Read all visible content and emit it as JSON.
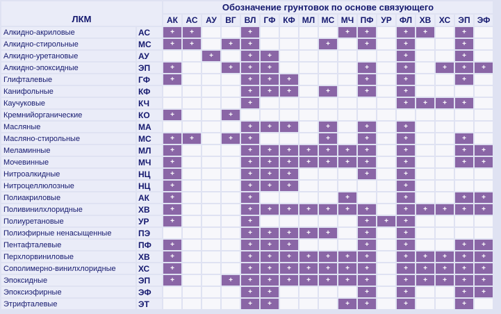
{
  "header": {
    "lkm_label": "ЛКМ",
    "title": "Обозначение грунтовок по основе связующего"
  },
  "mark_symbol": "+",
  "colors": {
    "background": "#dfe2f2",
    "cell": "#f7f7fb",
    "marked_cell": "#8a66a6",
    "text": "#14186e"
  },
  "columns": [
    "АК",
    "АС",
    "АУ",
    "ВГ",
    "ВЛ",
    "ГФ",
    "КФ",
    "МЛ",
    "МС",
    "МЧ",
    "ПФ",
    "УР",
    "ФЛ",
    "ХВ",
    "ХС",
    "ЭП",
    "ЭФ"
  ],
  "rows": [
    {
      "name": "Алкидно-акриловые",
      "code": "АС",
      "marks": [
        1,
        1,
        0,
        0,
        1,
        0,
        0,
        0,
        0,
        1,
        1,
        0,
        1,
        1,
        0,
        1,
        0
      ]
    },
    {
      "name": "Алкидно-стирольные",
      "code": "МС",
      "marks": [
        1,
        1,
        0,
        1,
        1,
        0,
        0,
        0,
        1,
        0,
        1,
        0,
        1,
        0,
        0,
        1,
        0
      ]
    },
    {
      "name": "Алкидно-уретановые",
      "code": "АУ",
      "marks": [
        0,
        0,
        1,
        0,
        1,
        1,
        0,
        0,
        0,
        0,
        0,
        0,
        1,
        0,
        0,
        1,
        0
      ]
    },
    {
      "name": "Алкидно-эпоксидные",
      "code": "ЭП",
      "marks": [
        1,
        0,
        0,
        1,
        1,
        1,
        0,
        0,
        0,
        0,
        1,
        0,
        1,
        0,
        1,
        1,
        1
      ]
    },
    {
      "name": "Глифталевые",
      "code": "ГФ",
      "marks": [
        1,
        0,
        0,
        0,
        1,
        1,
        1,
        0,
        0,
        0,
        1,
        0,
        1,
        0,
        0,
        1,
        0
      ]
    },
    {
      "name": "Канифольные",
      "code": "КФ",
      "marks": [
        0,
        0,
        0,
        0,
        1,
        1,
        1,
        0,
        1,
        0,
        1,
        0,
        1,
        0,
        0,
        0,
        0
      ]
    },
    {
      "name": "Каучуковые",
      "code": "КЧ",
      "marks": [
        0,
        0,
        0,
        0,
        1,
        0,
        0,
        0,
        0,
        0,
        0,
        0,
        1,
        1,
        1,
        1,
        0
      ]
    },
    {
      "name": "Кремнийорганические",
      "code": "КО",
      "marks": [
        1,
        0,
        0,
        1,
        0,
        0,
        0,
        0,
        0,
        0,
        0,
        0,
        0,
        0,
        0,
        0,
        0
      ]
    },
    {
      "name": "Масляные",
      "code": "МА",
      "marks": [
        0,
        0,
        0,
        0,
        1,
        1,
        1,
        0,
        1,
        0,
        1,
        0,
        1,
        0,
        0,
        0,
        0
      ]
    },
    {
      "name": "Масляно-стирольные",
      "code": "МС",
      "marks": [
        1,
        1,
        0,
        1,
        1,
        0,
        0,
        0,
        1,
        0,
        1,
        0,
        1,
        0,
        0,
        1,
        0
      ]
    },
    {
      "name": "Меламинные",
      "code": "МЛ",
      "marks": [
        1,
        0,
        0,
        0,
        1,
        1,
        1,
        1,
        1,
        1,
        1,
        0,
        1,
        0,
        0,
        1,
        1
      ]
    },
    {
      "name": "Мочевинные",
      "code": "МЧ",
      "marks": [
        1,
        0,
        0,
        0,
        1,
        1,
        1,
        1,
        1,
        1,
        1,
        0,
        1,
        0,
        0,
        1,
        1
      ]
    },
    {
      "name": "Нитроалкидные",
      "code": "НЦ",
      "marks": [
        1,
        0,
        0,
        0,
        1,
        1,
        1,
        0,
        0,
        0,
        1,
        0,
        1,
        0,
        0,
        0,
        0
      ]
    },
    {
      "name": "Нитроцеллюлозные",
      "code": "НЦ",
      "marks": [
        1,
        0,
        0,
        0,
        1,
        1,
        1,
        0,
        0,
        0,
        0,
        0,
        1,
        0,
        0,
        0,
        0
      ]
    },
    {
      "name": "Полиакриловые",
      "code": "АК",
      "marks": [
        1,
        0,
        0,
        0,
        1,
        0,
        0,
        0,
        0,
        1,
        0,
        0,
        1,
        0,
        0,
        1,
        1
      ]
    },
    {
      "name": "Поливинилхлоридные",
      "code": "ХВ",
      "marks": [
        1,
        0,
        0,
        0,
        1,
        1,
        1,
        1,
        1,
        1,
        1,
        0,
        1,
        1,
        1,
        1,
        1
      ]
    },
    {
      "name": "Полиуретановые",
      "code": "УР",
      "marks": [
        1,
        0,
        0,
        0,
        1,
        0,
        0,
        0,
        0,
        0,
        1,
        1,
        1,
        0,
        0,
        0,
        0
      ]
    },
    {
      "name": "Полиэфирные ненасыщенные",
      "code": "ПЭ",
      "marks": [
        0,
        0,
        0,
        0,
        1,
        1,
        1,
        1,
        1,
        0,
        1,
        0,
        1,
        0,
        0,
        0,
        0
      ]
    },
    {
      "name": "Пентафталевые",
      "code": "ПФ",
      "marks": [
        1,
        0,
        0,
        0,
        1,
        1,
        1,
        0,
        0,
        0,
        1,
        0,
        1,
        0,
        0,
        1,
        1
      ]
    },
    {
      "name": "Перхлорвиниловые",
      "code": "ХВ",
      "marks": [
        1,
        0,
        0,
        0,
        1,
        1,
        1,
        1,
        1,
        1,
        1,
        0,
        1,
        1,
        1,
        1,
        1
      ]
    },
    {
      "name": "Сополимерно-винилхлоридные",
      "code": "ХС",
      "marks": [
        1,
        0,
        0,
        0,
        1,
        1,
        1,
        1,
        1,
        1,
        1,
        0,
        1,
        1,
        1,
        1,
        1
      ]
    },
    {
      "name": "Эпоксидные",
      "code": "ЭП",
      "marks": [
        1,
        0,
        0,
        1,
        1,
        1,
        1,
        1,
        1,
        1,
        1,
        0,
        1,
        1,
        1,
        1,
        1
      ]
    },
    {
      "name": "Эпоксиэфирные",
      "code": "ЭФ",
      "marks": [
        0,
        0,
        0,
        0,
        1,
        1,
        0,
        0,
        0,
        0,
        1,
        0,
        1,
        0,
        0,
        1,
        1
      ]
    },
    {
      "name": "Этрифталевые",
      "code": "ЭТ",
      "marks": [
        0,
        0,
        0,
        0,
        1,
        1,
        0,
        0,
        0,
        1,
        1,
        0,
        1,
        0,
        0,
        1,
        0
      ]
    }
  ]
}
